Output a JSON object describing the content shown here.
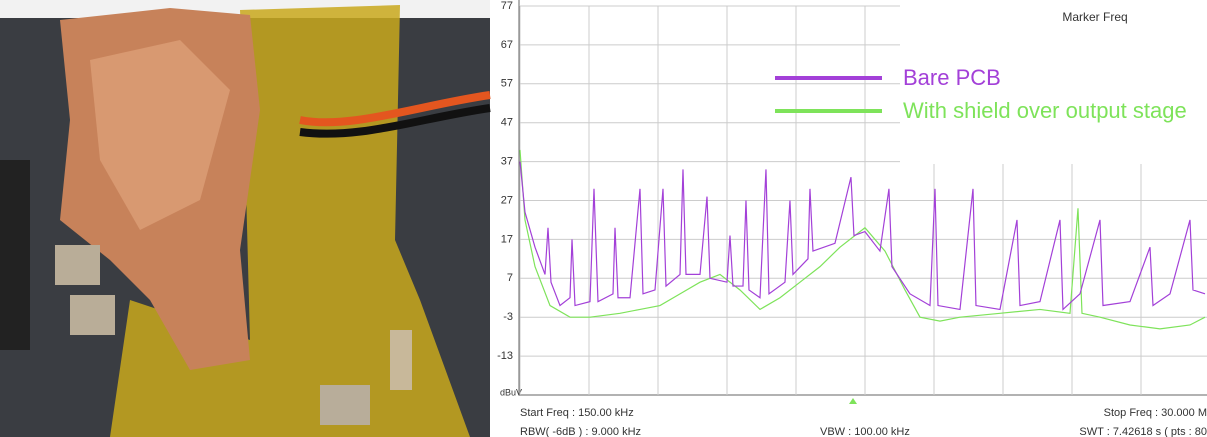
{
  "chart_data": {
    "type": "line",
    "marker_label": "Marker Freq",
    "y_unit": "dBuV",
    "footer": [
      "Start Freq : 150.00 kHz",
      "Stop Freq : 30.000 M",
      "RBW( -6dB ) : 9.000 kHz",
      "VBW : 100.00 kHz",
      "SWT : 7.42618 s ( pts : 80"
    ],
    "xlim": [
      150,
      30000
    ],
    "xticks": [
      150,
      3135,
      6120,
      9105,
      12090,
      15075,
      18060,
      21045,
      24030,
      27015,
      30000
    ],
    "ylim": [
      -23,
      77
    ],
    "yticks": [
      77,
      67,
      57,
      47,
      37,
      27,
      17,
      7,
      -3,
      -13
    ],
    "grid": true,
    "series": [
      {
        "name": "Bare PCB",
        "color": "#a340d8",
        "x": [
          150,
          366,
          799,
          1232,
          1361,
          1491,
          1880,
          2313,
          2400,
          2530,
          3178,
          3351,
          3524,
          4173,
          4260,
          4390,
          4909,
          5341,
          5471,
          5990,
          6336,
          6466,
          7072,
          7201,
          7331,
          7937,
          8240,
          8369,
          9105,
          9234,
          9364,
          9797,
          9926,
          10056,
          10532,
          10791,
          10921,
          11613,
          11829,
          11959,
          12608,
          12694,
          12824,
          13776,
          14468,
          14598,
          15073,
          15722,
          16111,
          16241,
          17020,
          17887,
          18103,
          18233,
          19184,
          19747,
          19876,
          20915,
          21650,
          21780,
          22645,
          23510,
          23640,
          24376,
          25241,
          25371,
          26539,
          27404,
          27534,
          28269,
          29134,
          29264,
          29784
        ],
        "values": [
          37,
          24,
          15,
          8,
          20,
          6,
          0,
          2,
          17,
          0,
          1,
          30,
          1,
          3,
          20,
          2,
          2,
          30,
          3,
          4,
          30,
          5,
          8,
          35,
          8,
          8,
          28,
          7,
          6,
          18,
          5,
          5,
          27,
          4,
          2,
          35,
          3,
          6,
          27,
          8,
          12,
          30,
          14,
          16,
          33,
          18,
          19,
          14,
          30,
          10,
          3,
          0,
          30,
          0,
          -1,
          30,
          0,
          -1,
          22,
          0,
          1,
          22,
          -1,
          3,
          22,
          0,
          1,
          15,
          0,
          3,
          22,
          4,
          3
        ]
      },
      {
        "name": "With shield over output stage",
        "color": "#7ee35a",
        "x": [
          150,
          366,
          799,
          1448,
          2313,
          3178,
          4476,
          5341,
          6206,
          7072,
          7937,
          8802,
          9667,
          10532,
          11398,
          12263,
          13128,
          13993,
          15073,
          15940,
          16805,
          17454,
          18319,
          19184,
          20915,
          22645,
          23943,
          24289,
          24462,
          25241,
          26539,
          27837,
          29134,
          29784
        ],
        "values": [
          40,
          22,
          10,
          0,
          -3,
          -3,
          -2,
          -1,
          0,
          3,
          6,
          8,
          4,
          -1,
          2,
          6,
          10,
          15,
          20,
          14,
          4,
          -3,
          -4,
          -3,
          -2,
          -1,
          -2,
          25,
          -2,
          -3,
          -5,
          -6,
          -5,
          -3
        ]
      }
    ]
  }
}
